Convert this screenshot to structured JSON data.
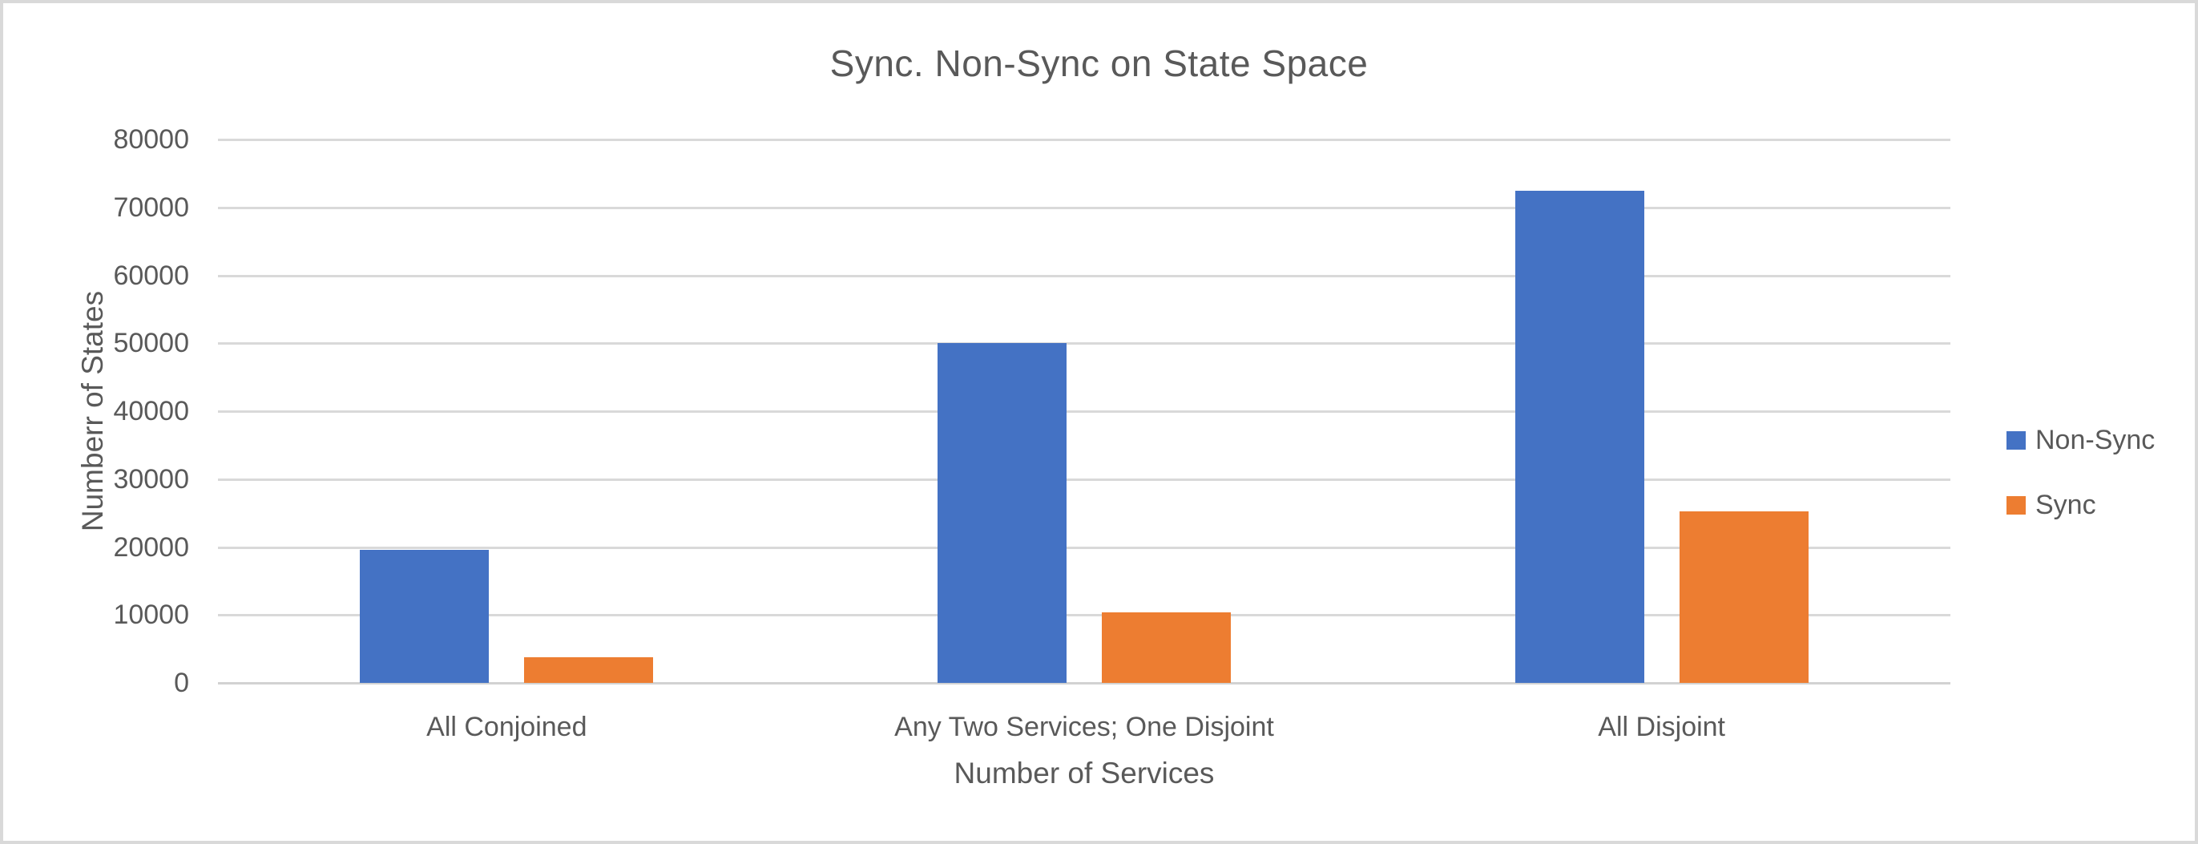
{
  "chart_data": {
    "type": "bar",
    "title": "Sync. Non-Sync on State Space",
    "xlabel": "Number of Services",
    "ylabel": "Numberr of States",
    "categories": [
      "All Conjoined",
      "Any Two Services; One Disjoint",
      "All Disjoint"
    ],
    "series": [
      {
        "name": "Non-Sync",
        "color": "#4472C4",
        "values": [
          19600,
          50000,
          72450
        ]
      },
      {
        "name": "Sync",
        "color": "#ED7D31",
        "values": [
          3750,
          10400,
          25250
        ]
      }
    ],
    "ylim": [
      0,
      80000
    ],
    "yticks": [
      0,
      10000,
      20000,
      30000,
      40000,
      50000,
      60000,
      70000,
      80000
    ],
    "grid": "horizontal",
    "legend_position": "right",
    "colors": {
      "text": "#595959",
      "gridline": "#d9d9d9",
      "canvas_border": "#d9d9d9",
      "background": "#ffffff"
    }
  }
}
